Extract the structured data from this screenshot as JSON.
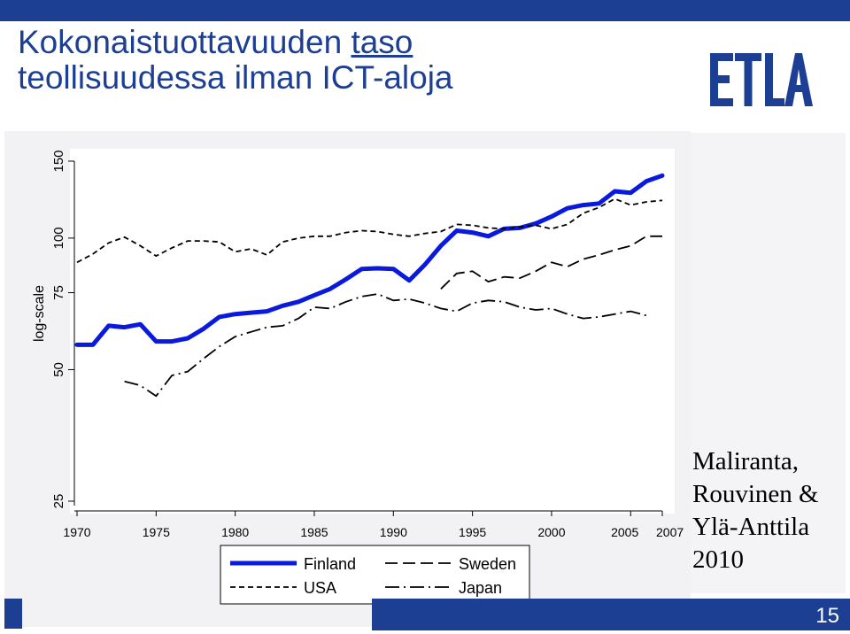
{
  "slide": {
    "title_part1": "Kokonaistuottavuuden",
    "title_part2": "taso",
    "title_line2": "teollisuudessa ilman ICT-aloja",
    "logo_text": "ETLA",
    "citation": [
      "Maliranta,",
      "Rouvinen &",
      "Ylä-Anttila",
      "2010"
    ],
    "page_number": "15",
    "brand_color": "#1c3f94"
  },
  "chart_data": {
    "type": "line",
    "ylabel": "log-scale",
    "y_scale": "log",
    "ylim": [
      25,
      150
    ],
    "yticks": [
      25,
      50,
      75,
      100,
      150
    ],
    "xlim": [
      1970,
      2007
    ],
    "xticks": [
      1970,
      1975,
      1980,
      1985,
      1990,
      1995,
      2000,
      2005,
      2007
    ],
    "legend": "bottom, boxed, two columns",
    "grid": false,
    "series": [
      {
        "name": "Finland",
        "style": "solid-thick",
        "color": "#0a1adc",
        "x": [
          1970,
          1971,
          1972,
          1973,
          1974,
          1975,
          1976,
          1977,
          1978,
          1979,
          1980,
          1981,
          1982,
          1983,
          1984,
          1985,
          1986,
          1987,
          1988,
          1989,
          1990,
          1991,
          1992,
          1993,
          1994,
          1995,
          1996,
          1997,
          1998,
          1999,
          2000,
          2001,
          2002,
          2003,
          2004,
          2005,
          2006,
          2007
        ],
        "y": [
          57,
          57,
          63,
          62.5,
          63.5,
          58,
          58,
          59,
          62,
          66,
          67,
          67.5,
          68,
          70,
          71.5,
          74,
          76.5,
          80.5,
          85,
          85.3,
          85,
          80,
          87,
          96,
          104,
          103,
          101,
          105,
          105.5,
          108,
          112,
          117,
          119,
          120,
          128,
          127,
          135,
          139
        ]
      },
      {
        "name": "USA",
        "style": "short-dash",
        "color": "#000000",
        "x": [
          1970,
          1971,
          1972,
          1973,
          1974,
          1975,
          1976,
          1977,
          1978,
          1979,
          1980,
          1981,
          1982,
          1983,
          1984,
          1985,
          1986,
          1987,
          1988,
          1989,
          1990,
          1991,
          1992,
          1993,
          1994,
          1995,
          1996,
          1997,
          1998,
          1999,
          2000,
          2001,
          2002,
          2003,
          2004,
          2005,
          2006,
          2007
        ],
        "y": [
          88,
          92,
          97.5,
          100.5,
          96,
          91,
          95,
          98.5,
          98.5,
          98,
          93,
          94.5,
          91.5,
          98,
          100,
          101,
          101,
          103,
          104,
          103.5,
          102,
          101,
          102.5,
          103.5,
          107.5,
          107,
          105.5,
          105,
          106,
          107,
          105,
          107.5,
          114,
          117.5,
          123,
          119,
          121,
          122
        ]
      },
      {
        "name": "Sweden",
        "style": "long-dash",
        "color": "#000000",
        "x": [
          1993,
          1994,
          1995,
          1996,
          1997,
          1998,
          1999,
          2000,
          2001,
          2002,
          2003,
          2004,
          2005,
          2006,
          2007
        ],
        "y": [
          76.5,
          83,
          84,
          79.5,
          81.5,
          81,
          84,
          88,
          86,
          89.5,
          91.5,
          94,
          96,
          101,
          101
        ]
      },
      {
        "name": "Japan",
        "style": "dash-dot",
        "color": "#000000",
        "x": [
          1973,
          1974,
          1975,
          1976,
          1977,
          1978,
          1979,
          1980,
          1981,
          1982,
          1983,
          1984,
          1985,
          1986,
          1987,
          1988,
          1989,
          1990,
          1991,
          1992,
          1993,
          1994,
          1995,
          1996,
          1997,
          1998,
          1999,
          2000,
          2001,
          2002,
          2003,
          2004,
          2005,
          2006
        ],
        "y": [
          47,
          46,
          43.5,
          48.5,
          49.5,
          53,
          56.5,
          59.5,
          61,
          62.5,
          63,
          65.5,
          69.5,
          69,
          71.5,
          73.5,
          74.5,
          72,
          72.5,
          71,
          69,
          68,
          71,
          72,
          71.5,
          69.5,
          68.5,
          69,
          67,
          65.5,
          66,
          67,
          68,
          66.5
        ]
      }
    ]
  }
}
